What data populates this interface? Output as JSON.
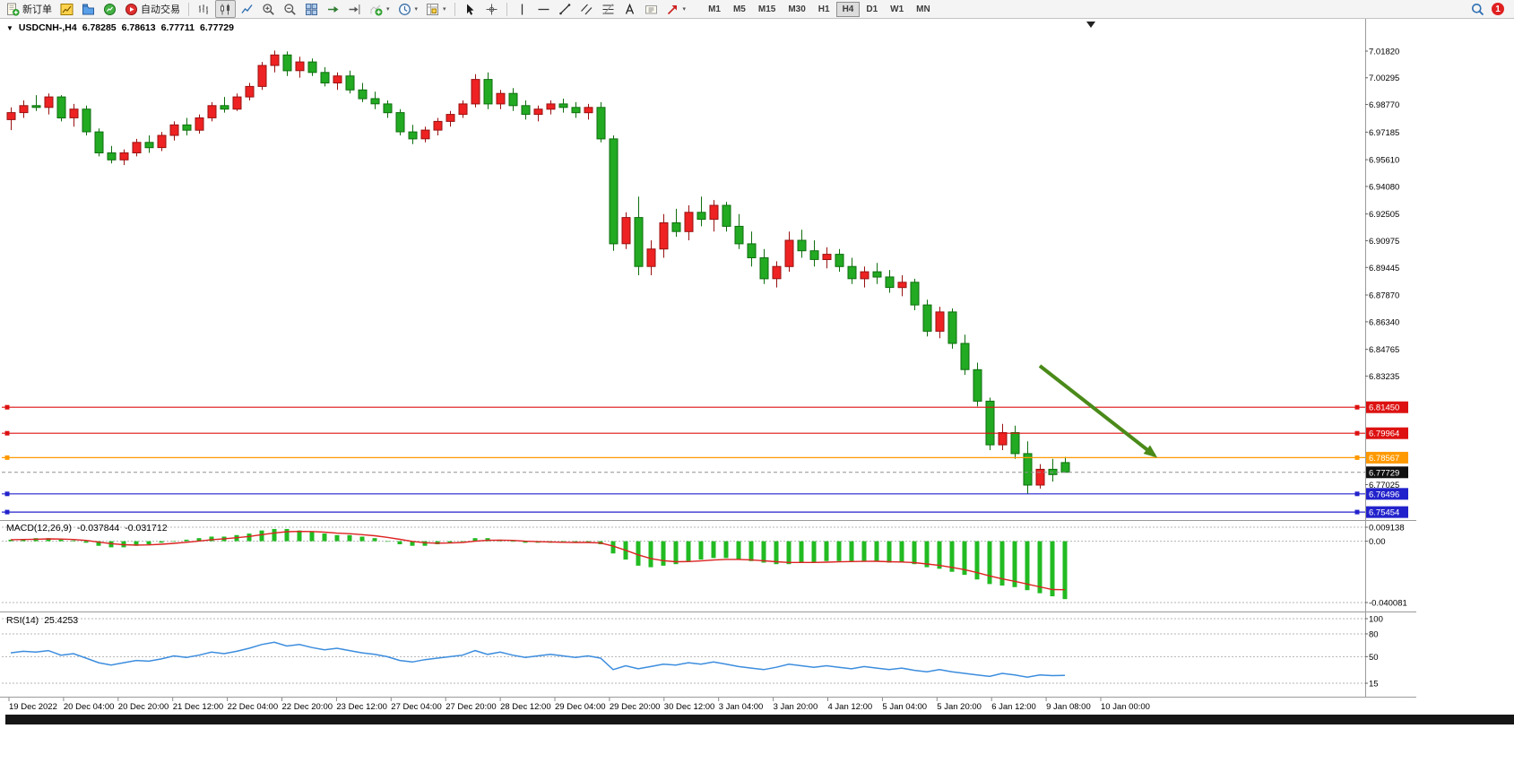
{
  "toolbar": {
    "groups": [
      [
        {
          "name": "new-order-button",
          "icon": "new-order-icon",
          "label": "新订单"
        }
      ],
      [
        {
          "name": "new-chart-button",
          "icon": "new-chart-icon"
        },
        {
          "name": "profiles-button",
          "icon": "profiles-icon"
        },
        {
          "name": "market-watch-button",
          "icon": "market-watch-icon"
        }
      ],
      [
        {
          "name": "autotrading-button",
          "icon": "autotrading-icon",
          "label": "自动交易"
        }
      ],
      "sep",
      [
        {
          "name": "bar-chart-button",
          "icon": "bar-chart-icon"
        },
        {
          "name": "candlestick-chart-button",
          "icon": "candlestick-icon",
          "pressed": true
        },
        {
          "name": "line-chart-button",
          "icon": "line-chart-icon"
        }
      ],
      [
        {
          "name": "zoom-in-button",
          "icon": "zoom-in-icon"
        },
        {
          "name": "zoom-out-button",
          "icon": "zoom-out-icon"
        }
      ],
      [
        {
          "name": "tile-windows-button",
          "icon": "tile-windows-icon"
        },
        {
          "name": "auto-scroll-button",
          "icon": "auto-scroll-icon"
        },
        {
          "name": "chart-shift-button",
          "icon": "chart-shift-icon"
        }
      ],
      [
        {
          "name": "indicators-button",
          "icon": "add-indicator-icon",
          "caret": true
        },
        {
          "name": "periods-button",
          "icon": "period-icon",
          "caret": true
        },
        {
          "name": "templates-button",
          "icon": "template-icon",
          "caret": true
        }
      ],
      "sep",
      [
        {
          "name": "cursor-button",
          "icon": "cursor-icon"
        },
        {
          "name": "crosshair-button",
          "icon": "crosshair-icon"
        }
      ],
      "sep",
      [
        {
          "name": "vertical-line-button",
          "icon": "vertical-line-icon"
        },
        {
          "name": "horizontal-line-button",
          "icon": "horizontal-line-icon"
        },
        {
          "name": "trendline-button",
          "icon": "trendline-icon"
        },
        {
          "name": "equidistant-channel-button",
          "icon": "channel-icon"
        },
        {
          "name": "fibonacci-button",
          "icon": "fibonacci-icon"
        }
      ],
      [
        {
          "name": "text-button",
          "icon": "text-icon"
        },
        {
          "name": "text-label-button",
          "icon": "label-icon"
        },
        {
          "name": "arrows-button",
          "icon": "shapes-icon",
          "caret": true
        }
      ]
    ],
    "timeframes": [
      "M1",
      "M5",
      "M15",
      "M30",
      "H1",
      "H4",
      "D1",
      "W1",
      "MN"
    ],
    "active_timeframe": "H4",
    "badge_count": "1"
  },
  "chart": {
    "header": {
      "symbol": "USDCNH-,H4",
      "open": "6.78285",
      "high": "6.78613",
      "low": "6.77711",
      "close": "6.77729"
    },
    "price_axis_ticks": [
      "7.01820",
      "7.00295",
      "6.98770",
      "6.97185",
      "6.95610",
      "6.94080",
      "6.92505",
      "6.90975",
      "6.89445",
      "6.87870",
      "6.86340",
      "6.84765",
      "6.83235",
      "6.77025"
    ],
    "price_tags": [
      {
        "text": "6.81450",
        "color": "#DD1111"
      },
      {
        "text": "6.79964",
        "color": "#DD1111"
      },
      {
        "text": "6.78567",
        "color": "#FF9900"
      },
      {
        "text": "6.77729",
        "color": "#111111"
      },
      {
        "text": "6.76496",
        "color": "#2222CC"
      },
      {
        "text": "6.75454",
        "color": "#2222CC"
      }
    ],
    "time_axis": [
      "19 Dec 2022",
      "20 Dec 04:00",
      "20 Dec 20:00",
      "21 Dec 12:00",
      "22 Dec 04:00",
      "22 Dec 20:00",
      "23 Dec 12:00",
      "27 Dec 04:00",
      "27 Dec 20:00",
      "28 Dec 12:00",
      "29 Dec 04:00",
      "29 Dec 20:00",
      "30 Dec 12:00",
      "3 Jan 04:00",
      "3 Jan 20:00",
      "4 Jan 12:00",
      "5 Jan 04:00",
      "5 Jan 20:00",
      "6 Jan 12:00",
      "9 Jan 08:00",
      "10 Jan 00:00"
    ]
  },
  "macd_panel": {
    "label": "MACD(12,26,9)",
    "value1": "-0.037844",
    "value2": "-0.031712",
    "axis": [
      "0.009138",
      "0.00",
      "-0.040081"
    ]
  },
  "rsi_panel": {
    "label": "RSI(14)",
    "value": "25.4253",
    "axis": [
      "100",
      "80",
      "50",
      "15"
    ]
  },
  "chart_data": {
    "type": "candlestick",
    "symbol": "USDCNH-",
    "timeframe": "H4",
    "ohlc_current": {
      "open": 6.78285,
      "high": 6.78613,
      "low": 6.77711,
      "close": 6.77729
    },
    "price_range": [
      6.748,
      7.033
    ],
    "candles": [
      [
        6.979,
        6.986,
        6.973,
        6.983
      ],
      [
        6.983,
        6.99,
        6.98,
        6.987
      ],
      [
        6.987,
        6.993,
        6.984,
        6.986
      ],
      [
        6.986,
        6.994,
        6.982,
        6.992
      ],
      [
        6.992,
        6.993,
        6.978,
        6.98
      ],
      [
        6.98,
        6.988,
        6.975,
        6.985
      ],
      [
        6.985,
        6.987,
        6.97,
        6.972
      ],
      [
        6.972,
        6.974,
        6.958,
        6.96
      ],
      [
        6.96,
        6.964,
        6.954,
        6.956
      ],
      [
        6.956,
        6.962,
        6.953,
        6.96
      ],
      [
        6.96,
        6.968,
        6.958,
        6.966
      ],
      [
        6.966,
        6.97,
        6.96,
        6.963
      ],
      [
        6.963,
        6.972,
        6.961,
        6.97
      ],
      [
        6.97,
        6.978,
        6.967,
        6.976
      ],
      [
        6.976,
        6.98,
        6.97,
        6.973
      ],
      [
        6.973,
        6.982,
        6.971,
        6.98
      ],
      [
        6.98,
        6.989,
        6.978,
        6.987
      ],
      [
        6.987,
        6.992,
        6.983,
        6.985
      ],
      [
        6.985,
        6.994,
        6.984,
        6.992
      ],
      [
        6.992,
        7.0,
        6.99,
        6.998
      ],
      [
        6.998,
        7.012,
        6.996,
        7.01
      ],
      [
        7.01,
        7.0185,
        7.006,
        7.016
      ],
      [
        7.016,
        7.018,
        7.004,
        7.007
      ],
      [
        7.007,
        7.015,
        7.003,
        7.012
      ],
      [
        7.012,
        7.014,
        7.004,
        7.006
      ],
      [
        7.006,
        7.009,
        6.998,
        7.0
      ],
      [
        7.0,
        7.006,
        6.996,
        7.004
      ],
      [
        7.004,
        7.007,
        6.994,
        6.996
      ],
      [
        6.996,
        7.0,
        6.989,
        6.991
      ],
      [
        6.991,
        6.995,
        6.985,
        6.988
      ],
      [
        6.988,
        6.99,
        6.98,
        6.983
      ],
      [
        6.983,
        6.985,
        6.97,
        6.972
      ],
      [
        6.972,
        6.976,
        6.965,
        6.968
      ],
      [
        6.968,
        6.975,
        6.966,
        6.973
      ],
      [
        6.973,
        6.98,
        6.97,
        6.978
      ],
      [
        6.978,
        6.984,
        6.975,
        6.982
      ],
      [
        6.982,
        6.99,
        6.98,
        6.988
      ],
      [
        6.988,
        7.005,
        6.986,
        7.002
      ],
      [
        7.002,
        7.006,
        6.985,
        6.988
      ],
      [
        6.988,
        6.996,
        6.985,
        6.994
      ],
      [
        6.994,
        6.997,
        6.984,
        6.987
      ],
      [
        6.987,
        6.99,
        6.979,
        6.982
      ],
      [
        6.982,
        6.987,
        6.978,
        6.985
      ],
      [
        6.985,
        6.99,
        6.982,
        6.988
      ],
      [
        6.988,
        6.991,
        6.983,
        6.986
      ],
      [
        6.986,
        6.989,
        6.98,
        6.983
      ],
      [
        6.983,
        6.988,
        6.979,
        6.986
      ],
      [
        6.986,
        6.989,
        6.966,
        6.968
      ],
      [
        6.968,
        6.97,
        6.904,
        6.908
      ],
      [
        6.908,
        6.926,
        6.905,
        6.923
      ],
      [
        6.923,
        6.935,
        6.89,
        6.895
      ],
      [
        6.895,
        6.91,
        6.89,
        6.905
      ],
      [
        6.905,
        6.925,
        6.9,
        6.92
      ],
      [
        6.92,
        6.928,
        6.912,
        6.915
      ],
      [
        6.915,
        6.93,
        6.91,
        6.926
      ],
      [
        6.926,
        6.935,
        6.918,
        6.922
      ],
      [
        6.922,
        6.933,
        6.915,
        6.93
      ],
      [
        6.93,
        6.932,
        6.915,
        6.918
      ],
      [
        6.918,
        6.925,
        6.905,
        6.908
      ],
      [
        6.908,
        6.915,
        6.895,
        6.9
      ],
      [
        6.9,
        6.905,
        6.885,
        6.888
      ],
      [
        6.888,
        6.898,
        6.883,
        6.895
      ],
      [
        6.895,
        6.915,
        6.892,
        6.91
      ],
      [
        6.91,
        6.916,
        6.9,
        6.904
      ],
      [
        6.904,
        6.91,
        6.895,
        6.899
      ],
      [
        6.899,
        6.906,
        6.894,
        6.902
      ],
      [
        6.902,
        6.905,
        6.892,
        6.895
      ],
      [
        6.895,
        6.9,
        6.885,
        6.888
      ],
      [
        6.888,
        6.895,
        6.883,
        6.892
      ],
      [
        6.892,
        6.897,
        6.885,
        6.889
      ],
      [
        6.889,
        6.893,
        6.88,
        6.883
      ],
      [
        6.883,
        6.89,
        6.878,
        6.886
      ],
      [
        6.886,
        6.888,
        6.87,
        6.873
      ],
      [
        6.873,
        6.876,
        6.855,
        6.858
      ],
      [
        6.858,
        6.872,
        6.854,
        6.869
      ],
      [
        6.869,
        6.871,
        6.848,
        6.851
      ],
      [
        6.851,
        6.856,
        6.833,
        6.836
      ],
      [
        6.836,
        6.84,
        6.815,
        6.818
      ],
      [
        6.818,
        6.82,
        6.79,
        6.793
      ],
      [
        6.793,
        6.805,
        6.79,
        6.8
      ],
      [
        6.8,
        6.804,
        6.785,
        6.788
      ],
      [
        6.788,
        6.795,
        6.765,
        6.77
      ],
      [
        6.77,
        6.782,
        6.768,
        6.779
      ],
      [
        6.779,
        6.785,
        6.772,
        6.776
      ],
      [
        6.78285,
        6.78613,
        6.77711,
        6.77729
      ]
    ],
    "hlines": [
      {
        "price": 6.8145,
        "color": "#DD1111",
        "style": "solid"
      },
      {
        "price": 6.79964,
        "color": "#DD1111",
        "style": "solid"
      },
      {
        "price": 6.78567,
        "color": "#FF9900",
        "style": "solid"
      },
      {
        "price": 6.77729,
        "color": "#909090",
        "style": "dash"
      },
      {
        "price": 6.76496,
        "color": "#2222CC",
        "style": "solid"
      },
      {
        "price": 6.75454,
        "color": "#2222CC",
        "style": "solid"
      }
    ],
    "arrow": {
      "x1_frac": 0.7617,
      "y1_price": 6.8382,
      "x2_frac": 0.8457,
      "y2_price": 6.7869,
      "color": "#4A8A19"
    },
    "macd": {
      "params": "12,26,9",
      "range": [
        -0.040081,
        0.009138
      ],
      "histogram": [
        0.001,
        0.0015,
        0.002,
        0.002,
        0.001,
        0.0005,
        -0.001,
        -0.003,
        -0.004,
        -0.004,
        -0.003,
        -0.002,
        -0.001,
        0.0,
        0.001,
        0.002,
        0.003,
        0.003,
        0.004,
        0.005,
        0.007,
        0.008,
        0.008,
        0.007,
        0.006,
        0.005,
        0.004,
        0.004,
        0.003,
        0.002,
        0.0,
        -0.002,
        -0.003,
        -0.003,
        -0.002,
        -0.001,
        0.0,
        0.002,
        0.002,
        0.001,
        0.0,
        -0.001,
        -0.001,
        -0.001,
        -0.001,
        -0.001,
        -0.001,
        -0.002,
        -0.008,
        -0.012,
        -0.016,
        -0.017,
        -0.016,
        -0.015,
        -0.013,
        -0.012,
        -0.011,
        -0.011,
        -0.012,
        -0.013,
        -0.014,
        -0.015,
        -0.015,
        -0.014,
        -0.014,
        -0.013,
        -0.013,
        -0.013,
        -0.013,
        -0.013,
        -0.014,
        -0.014,
        -0.015,
        -0.017,
        -0.018,
        -0.02,
        -0.022,
        -0.025,
        -0.028,
        -0.029,
        -0.03,
        -0.032,
        -0.034,
        -0.036,
        -0.037844
      ],
      "signal": [
        0.001,
        0.0011,
        0.0013,
        0.0015,
        0.0014,
        0.0011,
        0.0005,
        -0.0006,
        -0.0016,
        -0.0023,
        -0.0025,
        -0.0024,
        -0.002,
        -0.0014,
        -0.0007,
        0.0001,
        0.001,
        0.0016,
        0.0023,
        0.0031,
        0.0043,
        0.0054,
        0.0062,
        0.0064,
        0.0063,
        0.0059,
        0.0053,
        0.0049,
        0.0043,
        0.0036,
        0.0025,
        0.0012,
        -0.0001,
        -0.001,
        -0.0013,
        -0.0012,
        -0.0008,
        0.0,
        0.0006,
        0.0007,
        0.0005,
        0.0,
        -0.0003,
        -0.0005,
        -0.0007,
        -0.0008,
        -0.0008,
        -0.0012,
        -0.0032,
        -0.0059,
        -0.0089,
        -0.0113,
        -0.0127,
        -0.0134,
        -0.0133,
        -0.0129,
        -0.0123,
        -0.0119,
        -0.0119,
        -0.0122,
        -0.0128,
        -0.0134,
        -0.0139,
        -0.0139,
        -0.0139,
        -0.0137,
        -0.0135,
        -0.0133,
        -0.0132,
        -0.0131,
        -0.0134,
        -0.0136,
        -0.014,
        -0.0149,
        -0.0158,
        -0.0171,
        -0.0186,
        -0.0205,
        -0.0227,
        -0.0246,
        -0.0262,
        -0.028,
        -0.0298,
        -0.0316,
        -0.031712
      ]
    },
    "rsi": {
      "period": 14,
      "last": 25.4253,
      "levels": [
        100,
        80,
        50,
        15
      ],
      "values": [
        55,
        57,
        56,
        58,
        52,
        54,
        48,
        42,
        39,
        42,
        45,
        44,
        47,
        51,
        49,
        52,
        56,
        54,
        57,
        61,
        66,
        69,
        64,
        66,
        62,
        59,
        61,
        58,
        55,
        53,
        50,
        45,
        43,
        46,
        48,
        50,
        52,
        58,
        53,
        56,
        52,
        49,
        51,
        53,
        51,
        49,
        51,
        48,
        33,
        38,
        34,
        37,
        40,
        39,
        42,
        40,
        43,
        40,
        37,
        35,
        33,
        36,
        40,
        38,
        36,
        38,
        36,
        34,
        37,
        35,
        33,
        35,
        32,
        30,
        33,
        30,
        28,
        26,
        24,
        28,
        26,
        23,
        26,
        25,
        25.4253
      ]
    },
    "colors": {
      "up": "#EE2222",
      "up_border": "#991111",
      "down": "#22AA22",
      "down_border": "#0E6E0E",
      "macd_hist": "#22BB22",
      "macd_signal": "#DD2222",
      "rsi_line": "#3C8DDE"
    }
  }
}
